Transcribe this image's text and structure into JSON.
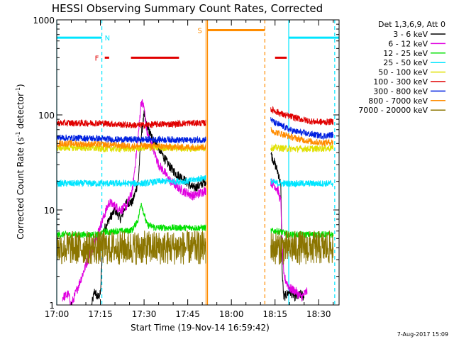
{
  "chart_data": {
    "type": "line",
    "title": "HESSI Observing Summary Count Rates, Corrected",
    "xlabel": "Start Time (19-Nov-14 16:59:42)",
    "ylabel_main": "Corrected Count Rate (s",
    "ylabel_sup1": "-1",
    "ylabel_mid": " detector",
    "ylabel_sup2": "-1",
    "ylabel_end": ")",
    "y_scale": "log",
    "ylim": [
      1,
      1000
    ],
    "xlim_minutes": [
      0,
      97
    ],
    "x_ticks": [
      {
        "min": 0,
        "label": "17:00"
      },
      {
        "min": 15,
        "label": "17:15"
      },
      {
        "min": 30,
        "label": "17:30"
      },
      {
        "min": 45,
        "label": "17:45"
      },
      {
        "min": 60,
        "label": "18:00"
      },
      {
        "min": 75,
        "label": "18:15"
      },
      {
        "min": 90,
        "label": "18:30"
      }
    ],
    "y_ticks": [
      {
        "val": 1000,
        "label": "1000"
      },
      {
        "val": 100,
        "label": "100"
      },
      {
        "val": 10,
        "label": "10"
      },
      {
        "val": 1,
        "label": "1"
      }
    ],
    "legend_header": "Det 1,3,6,9, Att 0",
    "legend_placement": "right",
    "footer_date": "7-Aug-2017 15:09",
    "annotations": [
      {
        "label": "N",
        "color": "#00e5ff"
      },
      {
        "label": "F",
        "color": "#e00000"
      },
      {
        "label": "S",
        "color": "#ff8c00"
      }
    ],
    "flags": [
      {
        "name": "night",
        "color": "#00e5ff",
        "y": 650,
        "spans": [
          [
            0,
            15.5
          ],
          [
            79.7,
            97
          ]
        ]
      },
      {
        "name": "flare",
        "color": "#e00000",
        "y": 400,
        "spans": [
          [
            16.5,
            18
          ],
          [
            25.5,
            42
          ],
          [
            75,
            79
          ]
        ]
      },
      {
        "name": "saa",
        "color": "#ff8c00",
        "y": 780,
        "spans": [
          [
            51.8,
            71.5
          ]
        ]
      }
    ],
    "vlines": [
      {
        "min": 0,
        "color": "#00e5ff",
        "style": "solid"
      },
      {
        "min": 15.5,
        "color": "#00e5ff",
        "style": "dashed"
      },
      {
        "min": 51.3,
        "color": "#ff8c00",
        "style": "solid"
      },
      {
        "min": 51.8,
        "color": "#ff8c00",
        "style": "solid"
      },
      {
        "min": 71.5,
        "color": "#ff8c00",
        "style": "dashed"
      },
      {
        "min": 79.7,
        "color": "#00e5ff",
        "style": "solid"
      },
      {
        "min": 95.5,
        "color": "#00e5ff",
        "style": "dashed"
      }
    ],
    "data_gap_minutes": [
      51.3,
      73.5
    ],
    "series": [
      {
        "name": "3 - 6 keV",
        "color": "#000000",
        "points": [
          [
            12,
            1
          ],
          [
            13,
            1.4
          ],
          [
            14,
            1.2
          ],
          [
            15,
            1.3
          ],
          [
            16,
            6
          ],
          [
            18,
            8
          ],
          [
            20,
            10
          ],
          [
            22,
            8
          ],
          [
            24,
            12
          ],
          [
            26,
            12
          ],
          [
            28,
            20
          ],
          [
            29,
            60
          ],
          [
            30,
            100
          ],
          [
            31,
            75
          ],
          [
            33,
            55
          ],
          [
            35,
            45
          ],
          [
            37,
            35
          ],
          [
            39,
            28
          ],
          [
            41,
            24
          ],
          [
            43,
            22
          ],
          [
            45,
            19
          ],
          [
            47,
            17
          ],
          [
            49,
            18
          ],
          [
            51,
            20
          ],
          [
            73.5,
            40
          ],
          [
            74,
            36
          ],
          [
            75,
            30
          ],
          [
            76,
            25
          ],
          [
            77,
            18
          ],
          [
            77.5,
            2
          ],
          [
            78,
            1.2
          ],
          [
            80,
            1.4
          ],
          [
            82,
            1.2
          ],
          [
            84,
            1.3
          ],
          [
            85,
            1.2
          ]
        ]
      },
      {
        "name": "6 - 12 keV",
        "color": "#e000e0",
        "points": [
          [
            2,
            1.2
          ],
          [
            4,
            1.3
          ],
          [
            5,
            1
          ],
          [
            17,
            10
          ],
          [
            18,
            12
          ],
          [
            20,
            11
          ],
          [
            22,
            10
          ],
          [
            24,
            11
          ],
          [
            26,
            16
          ],
          [
            28,
            60
          ],
          [
            29,
            140
          ],
          [
            30,
            120
          ],
          [
            31,
            65
          ],
          [
            33,
            45
          ],
          [
            35,
            30
          ],
          [
            37,
            25
          ],
          [
            39,
            20
          ],
          [
            41,
            18
          ],
          [
            43,
            16
          ],
          [
            45,
            15
          ],
          [
            47,
            14
          ],
          [
            49,
            15
          ],
          [
            51,
            16
          ],
          [
            73.5,
            20
          ],
          [
            74,
            19
          ],
          [
            75,
            18
          ],
          [
            76,
            16
          ],
          [
            77,
            12
          ],
          [
            77.5,
            4
          ],
          [
            78,
            2
          ],
          [
            80,
            1.5
          ],
          [
            82,
            1.4
          ],
          [
            84,
            1.2
          ],
          [
            86,
            1.4
          ]
        ]
      },
      {
        "name": "12 - 25 keV",
        "color": "#00e000",
        "points": [
          [
            0,
            5.5
          ],
          [
            3,
            5.5
          ],
          [
            6,
            5.5
          ],
          [
            9,
            5.5
          ],
          [
            12,
            5.5
          ],
          [
            15,
            5.5
          ],
          [
            16,
            6
          ],
          [
            18,
            5.8
          ],
          [
            20,
            6
          ],
          [
            22,
            6
          ],
          [
            24,
            6
          ],
          [
            26,
            6.2
          ],
          [
            28,
            8
          ],
          [
            29,
            12
          ],
          [
            30,
            9
          ],
          [
            31,
            7
          ],
          [
            34,
            6.5
          ],
          [
            38,
            6.5
          ],
          [
            42,
            6.5
          ],
          [
            46,
            6.5
          ],
          [
            51,
            6.5
          ],
          [
            73.5,
            6
          ],
          [
            76,
            6
          ],
          [
            80,
            5.5
          ],
          [
            85,
            5.5
          ],
          [
            90,
            5.5
          ],
          [
            95,
            5.5
          ]
        ]
      },
      {
        "name": "25 - 50 keV",
        "color": "#00e5ff",
        "points": [
          [
            0,
            19
          ],
          [
            5,
            19
          ],
          [
            10,
            19
          ],
          [
            15,
            19
          ],
          [
            20,
            19
          ],
          [
            25,
            19
          ],
          [
            30,
            19
          ],
          [
            35,
            20
          ],
          [
            40,
            20
          ],
          [
            45,
            20
          ],
          [
            48,
            21
          ],
          [
            51,
            22
          ],
          [
            73.5,
            20
          ],
          [
            76,
            19
          ],
          [
            80,
            19
          ],
          [
            85,
            19
          ],
          [
            90,
            19
          ],
          [
            95,
            19
          ]
        ]
      },
      {
        "name": "50 - 100 keV",
        "color": "#e0e000",
        "points": [
          [
            0,
            45
          ],
          [
            5,
            45
          ],
          [
            10,
            45
          ],
          [
            15,
            44
          ],
          [
            20,
            44
          ],
          [
            25,
            44
          ],
          [
            30,
            45
          ],
          [
            35,
            45
          ],
          [
            40,
            45
          ],
          [
            45,
            44
          ],
          [
            51,
            45
          ],
          [
            73.5,
            45
          ],
          [
            76,
            45
          ],
          [
            80,
            44
          ],
          [
            85,
            44
          ],
          [
            90,
            44
          ],
          [
            95,
            45
          ]
        ]
      },
      {
        "name": "100 - 300 keV",
        "color": "#e00000",
        "points": [
          [
            0,
            82
          ],
          [
            5,
            82
          ],
          [
            10,
            82
          ],
          [
            15,
            82
          ],
          [
            20,
            80
          ],
          [
            25,
            78
          ],
          [
            30,
            78
          ],
          [
            35,
            80
          ],
          [
            40,
            80
          ],
          [
            45,
            82
          ],
          [
            51,
            82
          ],
          [
            73.5,
            115
          ],
          [
            75,
            110
          ],
          [
            78,
            100
          ],
          [
            81,
            95
          ],
          [
            84,
            90
          ],
          [
            88,
            85
          ],
          [
            92,
            84
          ],
          [
            95,
            85
          ]
        ]
      },
      {
        "name": "300 - 800 keV",
        "color": "#0020e0",
        "points": [
          [
            0,
            58
          ],
          [
            5,
            57
          ],
          [
            10,
            57
          ],
          [
            15,
            56
          ],
          [
            20,
            55
          ],
          [
            25,
            55
          ],
          [
            30,
            55
          ],
          [
            35,
            55
          ],
          [
            40,
            55
          ],
          [
            45,
            54
          ],
          [
            51,
            55
          ],
          [
            73.5,
            90
          ],
          [
            75,
            82
          ],
          [
            78,
            75
          ],
          [
            81,
            68
          ],
          [
            84,
            65
          ],
          [
            88,
            62
          ],
          [
            92,
            60
          ],
          [
            95,
            62
          ]
        ]
      },
      {
        "name": "800 - 7000 keV",
        "color": "#ff8c00",
        "points": [
          [
            0,
            50
          ],
          [
            5,
            50
          ],
          [
            10,
            49
          ],
          [
            15,
            49
          ],
          [
            20,
            48
          ],
          [
            25,
            47
          ],
          [
            30,
            47
          ],
          [
            35,
            47
          ],
          [
            40,
            46
          ],
          [
            45,
            46
          ],
          [
            51,
            46
          ],
          [
            73.5,
            70
          ],
          [
            75,
            66
          ],
          [
            78,
            62
          ],
          [
            81,
            58
          ],
          [
            84,
            55
          ],
          [
            88,
            52
          ],
          [
            92,
            51
          ],
          [
            95,
            52
          ]
        ]
      },
      {
        "name": "7000 - 20000 keV",
        "color": "#8b7500",
        "points": [
          [
            0,
            4
          ],
          [
            5,
            4
          ],
          [
            10,
            4
          ],
          [
            15,
            4
          ],
          [
            20,
            4
          ],
          [
            25,
            4
          ],
          [
            30,
            4
          ],
          [
            35,
            4
          ],
          [
            40,
            4
          ],
          [
            45,
            4
          ],
          [
            51,
            4
          ],
          [
            73.5,
            4
          ],
          [
            76,
            4
          ],
          [
            80,
            4
          ],
          [
            85,
            4
          ],
          [
            90,
            4
          ],
          [
            95,
            4
          ]
        ]
      }
    ]
  }
}
